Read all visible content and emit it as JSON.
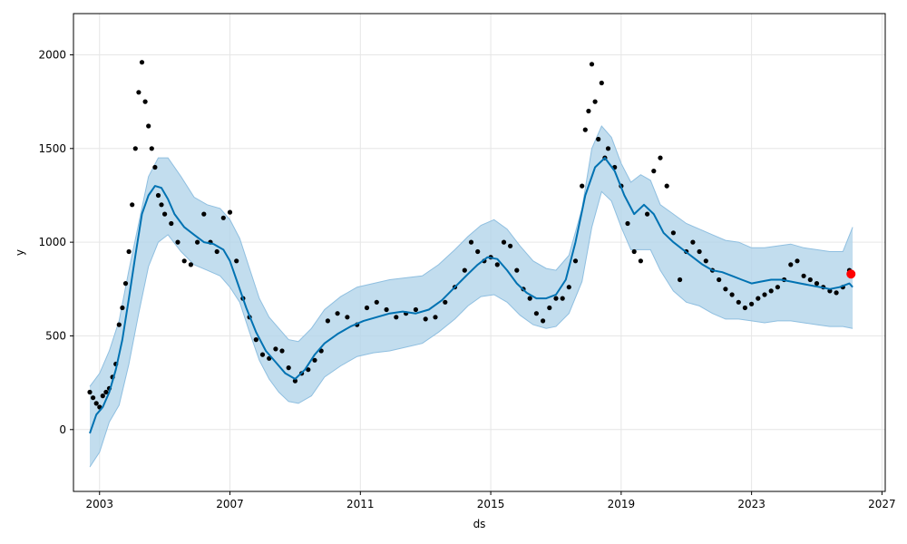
{
  "chart_data": {
    "type": "line",
    "xlabel": "ds",
    "ylabel": "y",
    "xlim": [
      2002.2,
      2027.1
    ],
    "ylim": [
      -330,
      2220
    ],
    "grid": true,
    "x_ticks": [
      2003,
      2007,
      2011,
      2015,
      2019,
      2023,
      2027
    ],
    "x_tick_labels": [
      "2003",
      "2007",
      "2011",
      "2015",
      "2019",
      "2023",
      "2027"
    ],
    "y_ticks": [
      0,
      500,
      1000,
      1500,
      2000
    ],
    "y_tick_labels": [
      "0",
      "500",
      "1000",
      "1500",
      "2000"
    ],
    "colors": {
      "observed": "#000000",
      "forecast": "#0072B2",
      "interval": "#b3d4ea",
      "interval_edge": "#8fbfe0",
      "highlight": "#ff0000",
      "grid": "#e6e6e6"
    },
    "series": [
      {
        "kind": "forecast",
        "x": [
          2002.7,
          2002.9,
          2003.1,
          2003.3,
          2003.5,
          2003.7,
          2003.9,
          2004.1,
          2004.3,
          2004.5,
          2004.7,
          2004.9,
          2005.1,
          2005.3,
          2005.6,
          2005.9,
          2006.2,
          2006.5,
          2006.8,
          2007.0,
          2007.2,
          2007.5,
          2007.8,
          2008.1,
          2008.4,
          2008.7,
          2009.0,
          2009.3,
          2009.6,
          2009.9,
          2010.3,
          2010.7,
          2011.1,
          2011.5,
          2011.9,
          2012.3,
          2012.7,
          2013.1,
          2013.5,
          2013.9,
          2014.3,
          2014.6,
          2014.9,
          2015.2,
          2015.5,
          2015.8,
          2016.1,
          2016.4,
          2016.7,
          2017.0,
          2017.3,
          2017.6,
          2017.9,
          2018.2,
          2018.5,
          2018.8,
          2019.1,
          2019.4,
          2019.7,
          2020.0,
          2020.3,
          2020.6,
          2020.9,
          2021.2,
          2021.5,
          2021.8,
          2022.1,
          2022.4,
          2022.7,
          2023.0,
          2023.3,
          2023.6,
          2023.9,
          2024.2,
          2024.5,
          2024.8,
          2025.1,
          2025.4,
          2025.7,
          2026.0,
          2026.1
        ],
        "y": [
          -20,
          80,
          120,
          200,
          320,
          480,
          700,
          930,
          1150,
          1250,
          1300,
          1290,
          1230,
          1150,
          1080,
          1040,
          1000,
          990,
          960,
          900,
          800,
          650,
          520,
          420,
          360,
          300,
          270,
          320,
          400,
          460,
          510,
          550,
          580,
          600,
          620,
          630,
          620,
          640,
          690,
          760,
          830,
          880,
          920,
          910,
          850,
          780,
          730,
          700,
          700,
          720,
          800,
          1000,
          1250,
          1400,
          1450,
          1380,
          1250,
          1150,
          1200,
          1150,
          1050,
          1000,
          960,
          920,
          880,
          850,
          840,
          820,
          800,
          780,
          790,
          800,
          800,
          790,
          780,
          770,
          760,
          750,
          760,
          780,
          760
        ]
      },
      {
        "kind": "observed",
        "x": [
          2002.7,
          2002.8,
          2002.9,
          2003.0,
          2003.1,
          2003.2,
          2003.3,
          2003.4,
          2003.5,
          2003.6,
          2003.7,
          2003.8,
          2003.9,
          2004.0,
          2004.1,
          2004.2,
          2004.3,
          2004.4,
          2004.5,
          2004.6,
          2004.7,
          2004.8,
          2004.9,
          2005.0,
          2005.2,
          2005.4,
          2005.6,
          2005.8,
          2006.0,
          2006.2,
          2006.4,
          2006.6,
          2006.8,
          2007.0,
          2007.2,
          2007.4,
          2007.6,
          2007.8,
          2008.0,
          2008.2,
          2008.4,
          2008.6,
          2008.8,
          2009.0,
          2009.2,
          2009.4,
          2009.6,
          2009.8,
          2010.0,
          2010.3,
          2010.6,
          2010.9,
          2011.2,
          2011.5,
          2011.8,
          2012.1,
          2012.4,
          2012.7,
          2013.0,
          2013.3,
          2013.6,
          2013.9,
          2014.2,
          2014.4,
          2014.6,
          2014.8,
          2015.0,
          2015.2,
          2015.4,
          2015.6,
          2015.8,
          2016.0,
          2016.2,
          2016.4,
          2016.6,
          2016.8,
          2017.0,
          2017.2,
          2017.4,
          2017.6,
          2017.8,
          2017.9,
          2018.0,
          2018.1,
          2018.2,
          2018.3,
          2018.4,
          2018.5,
          2018.6,
          2018.8,
          2019.0,
          2019.2,
          2019.4,
          2019.6,
          2019.8,
          2020.0,
          2020.2,
          2020.4,
          2020.6,
          2020.8,
          2021.0,
          2021.2,
          2021.4,
          2021.6,
          2021.8,
          2022.0,
          2022.2,
          2022.4,
          2022.6,
          2022.8,
          2023.0,
          2023.2,
          2023.4,
          2023.6,
          2023.8,
          2024.0,
          2024.2,
          2024.4,
          2024.6,
          2024.8,
          2025.0,
          2025.2,
          2025.4,
          2025.6,
          2025.8,
          2026.0
        ],
        "y": [
          200,
          170,
          140,
          120,
          180,
          200,
          220,
          280,
          350,
          560,
          650,
          780,
          950,
          1200,
          1500,
          1800,
          1960,
          1750,
          1620,
          1500,
          1400,
          1250,
          1200,
          1150,
          1100,
          1000,
          900,
          880,
          1000,
          1150,
          1000,
          950,
          1130,
          1160,
          900,
          700,
          600,
          480,
          400,
          380,
          430,
          420,
          330,
          260,
          300,
          320,
          370,
          420,
          580,
          620,
          600,
          560,
          650,
          680,
          640,
          600,
          620,
          640,
          590,
          600,
          680,
          760,
          850,
          1000,
          950,
          900,
          920,
          880,
          1000,
          980,
          850,
          750,
          700,
          620,
          580,
          650,
          700,
          700,
          760,
          900,
          1300,
          1600,
          1700,
          1950,
          1750,
          1550,
          1850,
          1450,
          1500,
          1400,
          1300,
          1100,
          950,
          900,
          1150,
          1380,
          1450,
          1300,
          1050,
          800,
          950,
          1000,
          950,
          900,
          850,
          800,
          750,
          720,
          680,
          650,
          670,
          700,
          720,
          740,
          760,
          800,
          880,
          900,
          820,
          800,
          780,
          760,
          740,
          730,
          760,
          850
        ]
      }
    ],
    "interval": {
      "x": [
        2002.7,
        2003.0,
        2003.3,
        2003.6,
        2003.9,
        2004.2,
        2004.5,
        2004.8,
        2005.1,
        2005.5,
        2005.9,
        2006.3,
        2006.7,
        2007.0,
        2007.3,
        2007.6,
        2007.9,
        2008.2,
        2008.5,
        2008.8,
        2009.1,
        2009.5,
        2009.9,
        2010.4,
        2010.9,
        2011.4,
        2011.9,
        2012.4,
        2012.9,
        2013.4,
        2013.9,
        2014.3,
        2014.7,
        2015.1,
        2015.5,
        2015.9,
        2016.3,
        2016.7,
        2017.0,
        2017.4,
        2017.8,
        2018.1,
        2018.4,
        2018.7,
        2019.0,
        2019.3,
        2019.6,
        2019.9,
        2020.2,
        2020.6,
        2021.0,
        2021.4,
        2021.8,
        2022.2,
        2022.6,
        2023.0,
        2023.4,
        2023.8,
        2024.2,
        2024.6,
        2025.0,
        2025.4,
        2025.8,
        2026.1
      ],
      "upper": [
        230,
        300,
        420,
        580,
        850,
        1100,
        1350,
        1450,
        1450,
        1350,
        1240,
        1200,
        1180,
        1120,
        1020,
        860,
        700,
        600,
        540,
        480,
        470,
        540,
        640,
        710,
        760,
        780,
        800,
        810,
        820,
        880,
        960,
        1030,
        1090,
        1120,
        1070,
        980,
        900,
        860,
        850,
        930,
        1180,
        1500,
        1620,
        1560,
        1420,
        1320,
        1360,
        1330,
        1200,
        1150,
        1100,
        1070,
        1040,
        1010,
        1000,
        970,
        970,
        980,
        990,
        970,
        960,
        950,
        950,
        1080
      ],
      "lower": [
        -200,
        -120,
        40,
        130,
        350,
        620,
        870,
        1000,
        1040,
        950,
        880,
        850,
        820,
        760,
        680,
        520,
        370,
        270,
        200,
        150,
        140,
        180,
        280,
        340,
        390,
        410,
        420,
        440,
        460,
        520,
        590,
        660,
        710,
        720,
        680,
        610,
        560,
        540,
        550,
        620,
        790,
        1080,
        1270,
        1220,
        1080,
        960,
        960,
        960,
        850,
        740,
        680,
        660,
        620,
        590,
        590,
        580,
        570,
        580,
        580,
        570,
        560,
        550,
        550,
        540
      ]
    },
    "highlight": {
      "x": 2026.05,
      "y": 830
    }
  }
}
